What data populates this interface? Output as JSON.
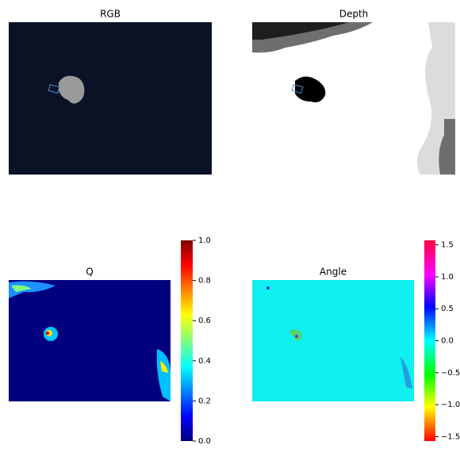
{
  "chart_data": [
    {
      "type": "image",
      "title": "RGB"
    },
    {
      "type": "image",
      "title": "Depth"
    },
    {
      "type": "heatmap",
      "title": "Q",
      "clim": [
        0,
        1
      ],
      "cticks": [
        {
          "value": 0,
          "label": "0.0"
        },
        0.2,
        0.4,
        0.6,
        0.8,
        {
          "value": 1,
          "label": "1.0"
        }
      ]
    },
    {
      "type": "heatmap",
      "title": "Angle",
      "clim": [
        -1.57,
        1.57
      ],
      "cticks": [
        {
          "value": -1.5,
          "label": "−1.5"
        },
        {
          "value": -1,
          "label": "−1.0"
        },
        {
          "value": -0.5,
          "label": "−0.5"
        },
        {
          "value": 0,
          "label": "0.0"
        },
        0.5,
        {
          "value": 1,
          "label": "1.0"
        },
        1.5
      ]
    }
  ]
}
